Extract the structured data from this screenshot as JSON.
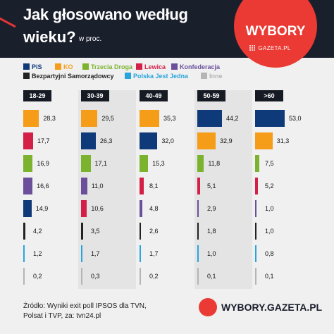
{
  "header": {
    "title_line1": "Jak głosowano według",
    "title_line2": "wieku?",
    "unit": "w proc.",
    "logo_text": "WYBORY",
    "logo_sub": "GAZETA.PL"
  },
  "colors": {
    "PiS": "#0f3a7a",
    "KO": "#f59d19",
    "Trzecia Droga": "#7bb32e",
    "Lewica": "#d41f46",
    "Konfederacja": "#6b4f9b",
    "Bezpartyjni Samorządowcy": "#222222",
    "Polska Jest Jedna": "#2aa5dc",
    "Inne": "#b5b5b5"
  },
  "legend": [
    {
      "name": "PiS",
      "color": "#0f3a7a"
    },
    {
      "name": "KO",
      "color": "#f59d19"
    },
    {
      "name": "Trzecia Droga",
      "color": "#7bb32e"
    },
    {
      "name": "Lewica",
      "color": "#d41f46"
    },
    {
      "name": "Konfederacja",
      "color": "#6b4f9b"
    },
    {
      "name": "Bezpartyjni Samorządowcy",
      "color": "#222222"
    },
    {
      "name": "Polska Jest Jedna",
      "color": "#2aa5dc"
    },
    {
      "name": "Inne",
      "color": "#b5b5b5"
    }
  ],
  "chart_data": {
    "type": "bar",
    "categories": [
      "18-29",
      "30-39",
      "40-49",
      "50-59",
      ">60"
    ],
    "groups": [
      {
        "category": "18-29",
        "bars": [
          {
            "party": "KO",
            "value": 28.3,
            "label": "28,3"
          },
          {
            "party": "Lewica",
            "value": 17.7,
            "label": "17,7"
          },
          {
            "party": "Trzecia Droga",
            "value": 16.9,
            "label": "16,9"
          },
          {
            "party": "Konfederacja",
            "value": 16.6,
            "label": "16,6"
          },
          {
            "party": "PiS",
            "value": 14.9,
            "label": "14,9"
          },
          {
            "party": "Bezpartyjni Samorządowcy",
            "value": 4.2,
            "label": "4,2"
          },
          {
            "party": "Polska Jest Jedna",
            "value": 1.2,
            "label": "1,2"
          },
          {
            "party": "Inne",
            "value": 0.2,
            "label": "0,2"
          }
        ]
      },
      {
        "category": "30-39",
        "bars": [
          {
            "party": "KO",
            "value": 29.5,
            "label": "29,5"
          },
          {
            "party": "PiS",
            "value": 26.3,
            "label": "26,3"
          },
          {
            "party": "Trzecia Droga",
            "value": 17.1,
            "label": "17,1"
          },
          {
            "party": "Konfederacja",
            "value": 11.0,
            "label": "11,0"
          },
          {
            "party": "Lewica",
            "value": 10.6,
            "label": "10,6"
          },
          {
            "party": "Bezpartyjni Samorządowcy",
            "value": 3.5,
            "label": "3,5"
          },
          {
            "party": "Polska Jest Jedna",
            "value": 1.7,
            "label": "1,7"
          },
          {
            "party": "Inne",
            "value": 0.3,
            "label": "0,3"
          }
        ]
      },
      {
        "category": "40-49",
        "bars": [
          {
            "party": "KO",
            "value": 35.3,
            "label": "35,3"
          },
          {
            "party": "PiS",
            "value": 32.0,
            "label": "32,0"
          },
          {
            "party": "Trzecia Droga",
            "value": 15.3,
            "label": "15,3"
          },
          {
            "party": "Lewica",
            "value": 8.1,
            "label": "8,1"
          },
          {
            "party": "Konfederacja",
            "value": 4.8,
            "label": "4,8"
          },
          {
            "party": "Bezpartyjni Samorządowcy",
            "value": 2.6,
            "label": "2,6"
          },
          {
            "party": "Polska Jest Jedna",
            "value": 1.7,
            "label": "1,7"
          },
          {
            "party": "Inne",
            "value": 0.2,
            "label": "0,2"
          }
        ]
      },
      {
        "category": "50-59",
        "bars": [
          {
            "party": "PiS",
            "value": 44.2,
            "label": "44,2"
          },
          {
            "party": "KO",
            "value": 32.9,
            "label": "32,9"
          },
          {
            "party": "Trzecia Droga",
            "value": 11.8,
            "label": "11,8"
          },
          {
            "party": "Lewica",
            "value": 5.1,
            "label": "5,1"
          },
          {
            "party": "Konfederacja",
            "value": 2.9,
            "label": "2,9"
          },
          {
            "party": "Bezpartyjni Samorządowcy",
            "value": 1.8,
            "label": "1,8"
          },
          {
            "party": "Polska Jest Jedna",
            "value": 1.0,
            "label": "1,0"
          },
          {
            "party": "Inne",
            "value": 0.1,
            "label": "0,1"
          }
        ]
      },
      {
        "category": ">60",
        "bars": [
          {
            "party": "PiS",
            "value": 53.0,
            "label": "53,0"
          },
          {
            "party": "KO",
            "value": 31.3,
            "label": "31,3"
          },
          {
            "party": "Trzecia Droga",
            "value": 7.5,
            "label": "7,5"
          },
          {
            "party": "Lewica",
            "value": 5.2,
            "label": "5,2"
          },
          {
            "party": "Konfederacja",
            "value": 1.0,
            "label": "1,0"
          },
          {
            "party": "Bezpartyjni Samorządowcy",
            "value": 1.0,
            "label": "1,0"
          },
          {
            "party": "Polska Jest Jedna",
            "value": 0.8,
            "label": "0,8"
          },
          {
            "party": "Inne",
            "value": 0.1,
            "label": "0,1"
          }
        ]
      }
    ]
  },
  "footer": {
    "source_line1": "Źródło: Wyniki exit poll IPSOS dla TVN,",
    "source_line2": "Polsat i TVP, za: tvn24.pl",
    "logo_text": "WYBORY.GAZETA.PL"
  }
}
